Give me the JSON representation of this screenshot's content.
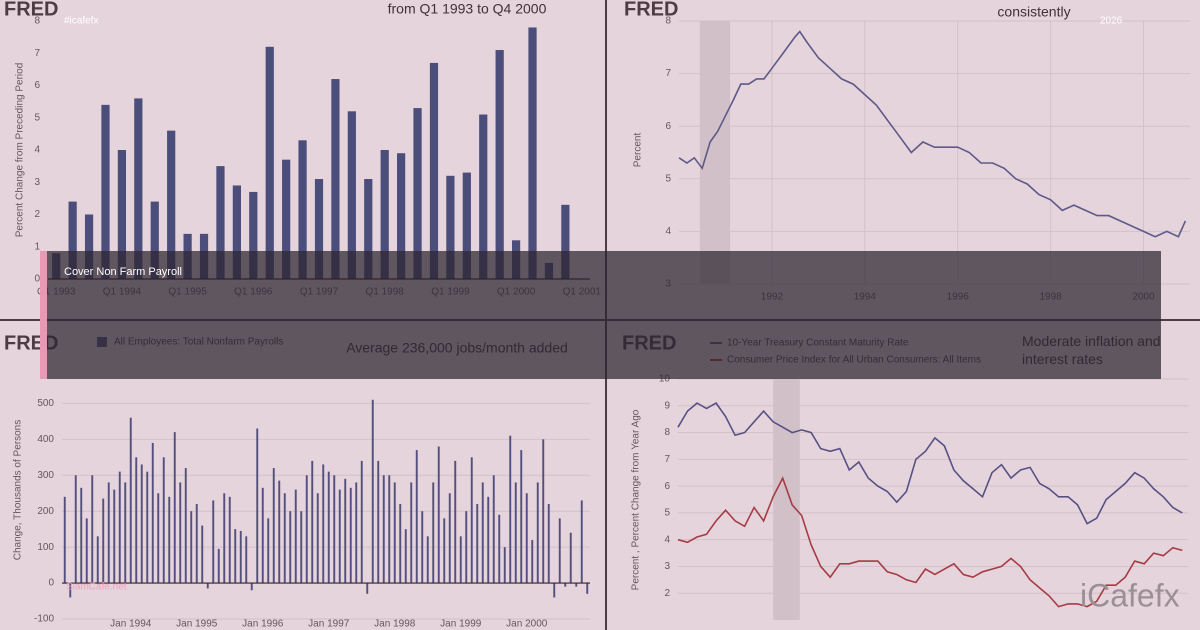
{
  "overlay": {
    "tag": "#icafefx",
    "year": "2026",
    "banner": "Cover Non Farm Payroll",
    "watermark": "SiamCafe.net",
    "logo": "iCafefx"
  },
  "chart_data": [
    {
      "type": "bar",
      "source": "FRED",
      "title": "from Q1 1993 to Q4 2000",
      "y_label": "Percent Change from Preceding Period",
      "color": "#2e4a7d",
      "categories": [
        "Q1 1993",
        null,
        null,
        null,
        "Q1 1994",
        null,
        null,
        null,
        "Q1 1995",
        null,
        null,
        null,
        "Q1 1996",
        null,
        null,
        null,
        "Q1 1997",
        null,
        null,
        null,
        "Q1 1998",
        null,
        null,
        null,
        "Q1 1999",
        null,
        null,
        null,
        "Q1 2000",
        null,
        null,
        null,
        "Q1 2001"
      ],
      "values": [
        0.8,
        2.4,
        2.0,
        5.4,
        4.0,
        5.6,
        2.4,
        4.6,
        1.4,
        1.4,
        3.5,
        2.9,
        2.7,
        7.2,
        3.7,
        4.3,
        3.1,
        6.2,
        5.2,
        3.1,
        4.0,
        3.9,
        5.3,
        6.7,
        3.2,
        3.3,
        5.1,
        7.1,
        1.2,
        7.8,
        0.5,
        2.3,
        null
      ],
      "ylim": [
        0,
        8
      ],
      "yticks": [
        0,
        1,
        2,
        3,
        4,
        5,
        6,
        7,
        8
      ],
      "grid": false
    },
    {
      "type": "line",
      "source": "FRED",
      "title": "consistently",
      "y_label": "Percent",
      "color": "#4a5a8f",
      "x": [
        1990.0,
        1990.17,
        1990.33,
        1990.5,
        1990.67,
        1990.83,
        1991.0,
        1991.17,
        1991.33,
        1991.5,
        1991.67,
        1991.83,
        1992.0,
        1992.25,
        1992.5,
        1992.6,
        1992.75,
        1993.0,
        1993.25,
        1993.5,
        1993.75,
        1994.0,
        1994.25,
        1994.5,
        1994.75,
        1995.0,
        1995.25,
        1995.5,
        1995.75,
        1996.0,
        1996.25,
        1996.5,
        1996.75,
        1997.0,
        1997.25,
        1997.5,
        1997.75,
        1998.0,
        1998.25,
        1998.5,
        1998.75,
        1999.0,
        1999.25,
        1999.5,
        1999.75,
        2000.0,
        2000.25,
        2000.5,
        2000.75,
        2000.9
      ],
      "values": [
        5.4,
        5.3,
        5.4,
        5.2,
        5.7,
        5.9,
        6.2,
        6.5,
        6.8,
        6.8,
        6.9,
        6.9,
        7.1,
        7.4,
        7.7,
        7.8,
        7.6,
        7.3,
        7.1,
        6.9,
        6.8,
        6.6,
        6.4,
        6.1,
        5.8,
        5.5,
        5.7,
        5.6,
        5.6,
        5.6,
        5.5,
        5.3,
        5.3,
        5.2,
        5.0,
        4.9,
        4.7,
        4.6,
        4.4,
        4.5,
        4.4,
        4.3,
        4.3,
        4.2,
        4.1,
        4.0,
        3.9,
        4.0,
        3.9,
        4.2
      ],
      "shaded_ranges": [
        [
          1990.45,
          1991.1
        ]
      ],
      "xlim": [
        1990,
        2001
      ],
      "xticks": [
        1992,
        1994,
        1996,
        1998,
        2000
      ],
      "ylim": [
        3,
        8
      ],
      "yticks": [
        3,
        4,
        5,
        6,
        7,
        8
      ],
      "grid": true
    },
    {
      "type": "bar",
      "source": "FRED",
      "title": "Average 236,000 jobs/month added",
      "y_label": "Change, Thousands of Persons",
      "categories": [
        null,
        null,
        null,
        null,
        null,
        null,
        null,
        null,
        null,
        null,
        null,
        null,
        "Jan 1994",
        null,
        null,
        null,
        null,
        null,
        null,
        null,
        null,
        null,
        null,
        null,
        "Jan 1995",
        null,
        null,
        null,
        null,
        null,
        null,
        null,
        null,
        null,
        null,
        null,
        "Jan 1996",
        null,
        null,
        null,
        null,
        null,
        null,
        null,
        null,
        null,
        null,
        null,
        "Jan 1997",
        null,
        null,
        null,
        null,
        null,
        null,
        null,
        null,
        null,
        null,
        null,
        "Jan 1998",
        null,
        null,
        null,
        null,
        null,
        null,
        null,
        null,
        null,
        null,
        null,
        "Jan 1999",
        null,
        null,
        null,
        null,
        null,
        null,
        null,
        null,
        null,
        null,
        null,
        "Jan 2000",
        null,
        null,
        null,
        null,
        null,
        null,
        null,
        null,
        null,
        null,
        null
      ],
      "series": [
        {
          "name": "All Employees: Total Nonfarm Payrolls",
          "color": "#3a4d80",
          "values": [
            240,
            -40,
            300,
            265,
            180,
            300,
            130,
            235,
            280,
            260,
            310,
            280,
            460,
            350,
            330,
            310,
            390,
            250,
            350,
            240,
            420,
            280,
            320,
            200,
            220,
            160,
            -15,
            230,
            95,
            250,
            240,
            150,
            145,
            130,
            -20,
            430,
            265,
            180,
            320,
            285,
            250,
            200,
            260,
            200,
            300,
            340,
            250,
            330,
            310,
            300,
            260,
            290,
            265,
            280,
            340,
            -30,
            510,
            340,
            300,
            300,
            280,
            220,
            150,
            280,
            370,
            200,
            130,
            280,
            380,
            180,
            250,
            340,
            130,
            200,
            350,
            220,
            280,
            240,
            300,
            190,
            100,
            410,
            280,
            370,
            250,
            120,
            280,
            400,
            220,
            -40,
            180,
            -10,
            140,
            -10,
            230,
            -30
          ]
        }
      ],
      "ylim": [
        -100,
        540
      ],
      "yticks": [
        -100,
        0,
        100,
        200,
        300,
        400,
        500
      ],
      "grid": true
    },
    {
      "type": "line",
      "source": "FRED",
      "title": "Moderate inflation and interest rates",
      "y_label": "Percent , Percent Change from Year Ago",
      "x": [
        1988.0,
        1988.25,
        1988.5,
        1988.75,
        1989.0,
        1989.25,
        1989.5,
        1989.75,
        1990.0,
        1990.25,
        1990.5,
        1990.75,
        1991.0,
        1991.25,
        1991.5,
        1991.75,
        1992.0,
        1992.25,
        1992.5,
        1992.75,
        1993.0,
        1993.25,
        1993.5,
        1993.75,
        1994.0,
        1994.25,
        1994.5,
        1994.75,
        1995.0,
        1995.25,
        1995.5,
        1995.75,
        1996.0,
        1996.25,
        1996.5,
        1996.75,
        1997.0,
        1997.25,
        1997.5,
        1997.75,
        1998.0,
        1998.25,
        1998.5,
        1998.75,
        1999.0,
        1999.25,
        1999.5,
        1999.75,
        2000.0,
        2000.25,
        2000.5,
        2000.75,
        2001.0,
        2001.25
      ],
      "series": [
        {
          "name": "10-Year Treasury Constant Maturity Rate",
          "color": "#3d4f8a",
          "values": [
            8.2,
            8.8,
            9.1,
            8.9,
            9.1,
            8.6,
            7.9,
            8.0,
            8.4,
            8.8,
            8.4,
            8.2,
            8.0,
            8.1,
            8.0,
            7.4,
            7.3,
            7.4,
            6.6,
            6.9,
            6.3,
            6.0,
            5.8,
            5.4,
            5.8,
            7.0,
            7.3,
            7.8,
            7.5,
            6.6,
            6.2,
            5.9,
            5.6,
            6.5,
            6.8,
            6.3,
            6.6,
            6.7,
            6.1,
            5.9,
            5.6,
            5.6,
            5.3,
            4.6,
            4.8,
            5.5,
            5.8,
            6.1,
            6.5,
            6.3,
            5.9,
            5.6,
            5.2,
            5.0
          ]
        },
        {
          "name": "Consumer Price Index for All Urban Consumers: All Items",
          "color": "#a83232",
          "values": [
            4.0,
            3.9,
            4.1,
            4.2,
            4.7,
            5.1,
            4.7,
            4.5,
            5.2,
            4.7,
            5.6,
            6.3,
            5.3,
            4.9,
            3.8,
            3.0,
            2.6,
            3.1,
            3.1,
            3.2,
            3.2,
            3.2,
            2.8,
            2.7,
            2.5,
            2.4,
            2.9,
            2.7,
            2.9,
            3.1,
            2.7,
            2.6,
            2.8,
            2.9,
            3.0,
            3.3,
            3.0,
            2.5,
            2.2,
            1.9,
            1.5,
            1.6,
            1.6,
            1.5,
            1.7,
            2.3,
            2.3,
            2.6,
            3.2,
            3.1,
            3.5,
            3.4,
            3.7,
            3.6
          ]
        }
      ],
      "shaded_ranges": [
        [
          1990.5,
          1991.2
        ]
      ],
      "xlim": [
        1988,
        2001.4
      ],
      "ylim": [
        1,
        10
      ],
      "yticks": [
        2,
        3,
        4,
        5,
        6,
        7,
        8,
        9,
        10
      ],
      "grid": true
    }
  ]
}
